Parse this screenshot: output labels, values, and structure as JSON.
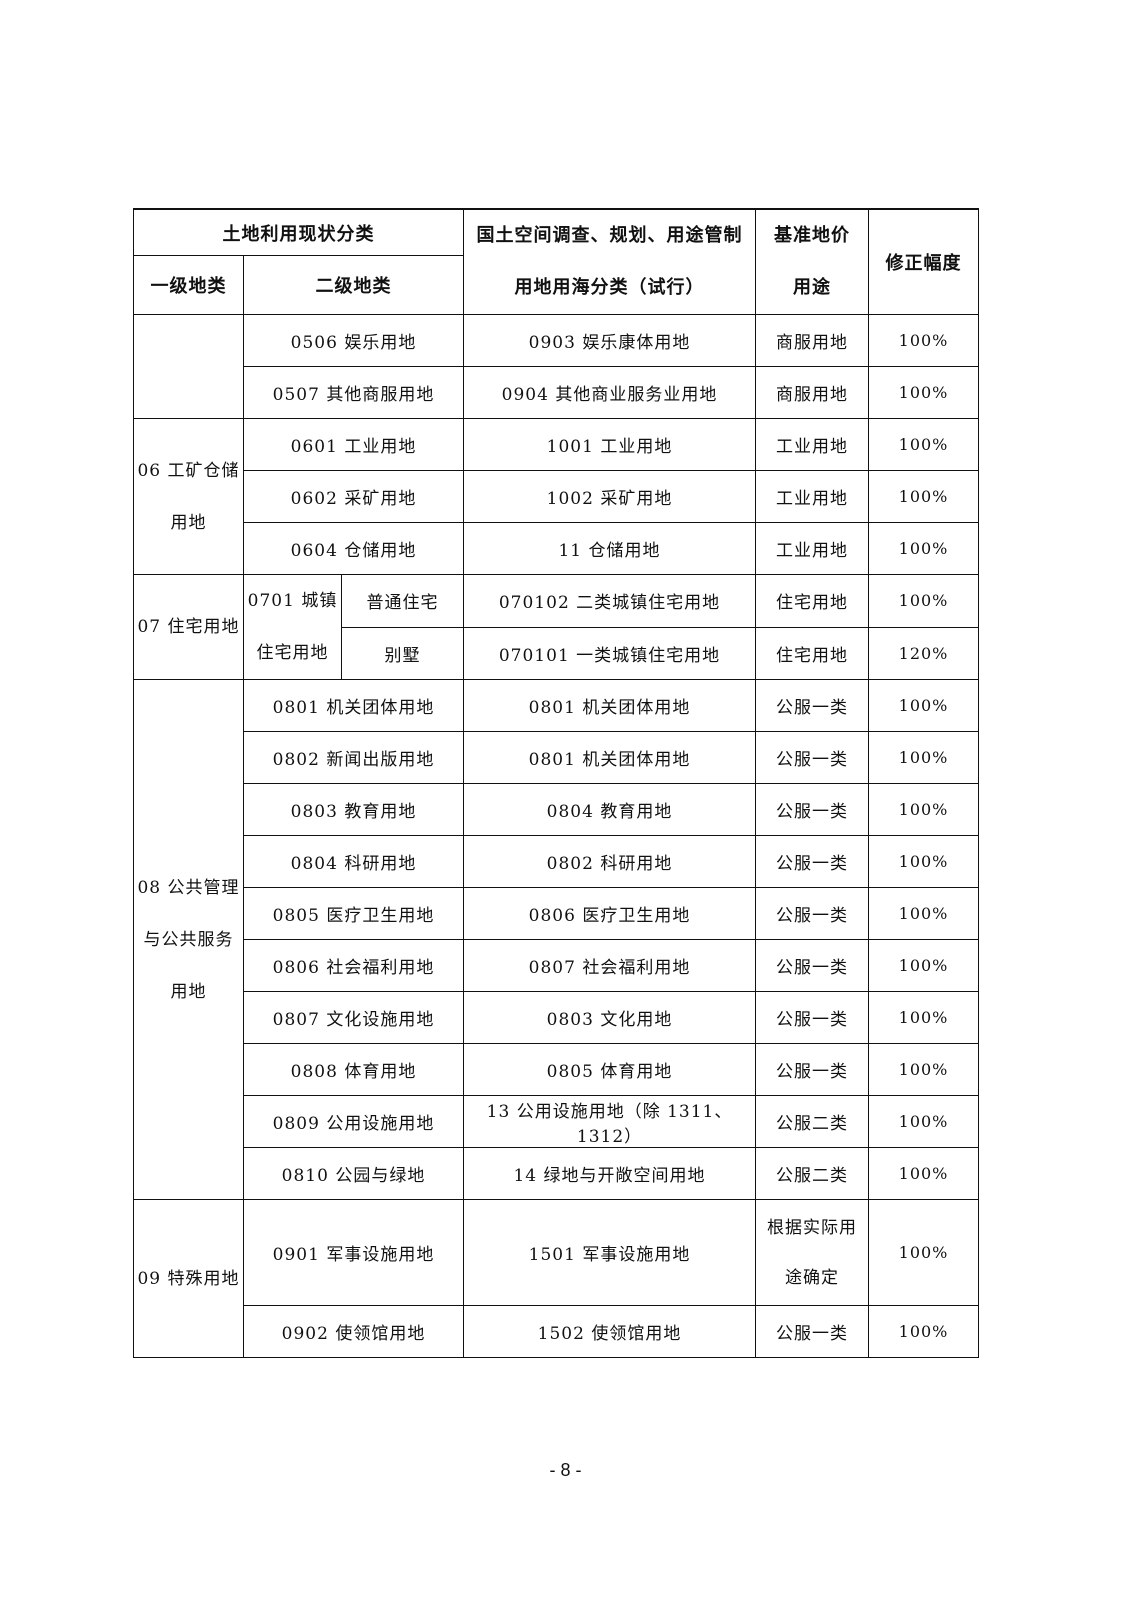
{
  "header": {
    "current_class": "土地利用现状分类",
    "level1": "一级地类",
    "level2": "二级地类",
    "spatial_line1": "国土空间调查、规划、用途管制",
    "spatial_line2": "用地用海分类（试行）",
    "base_use_line1": "基准地价",
    "base_use_line2": "用途",
    "adjust": "修正幅度"
  },
  "groups": [
    {
      "primary": "",
      "rows": [
        {
          "secondary": "0506 娱乐用地",
          "spatial": "0903 娱乐康体用地",
          "use": "商服用地",
          "pct": "100%"
        },
        {
          "secondary": "0507 其他商服用地",
          "spatial": "0904 其他商业服务业用地",
          "use": "商服用地",
          "pct": "100%"
        }
      ]
    },
    {
      "primary": "06 工矿仓储用地",
      "rows": [
        {
          "secondary": "0601 工业用地",
          "spatial": "1001 工业用地",
          "use": "工业用地",
          "pct": "100%"
        },
        {
          "secondary": "0602 采矿用地",
          "spatial": "1002 采矿用地",
          "use": "工业用地",
          "pct": "100%"
        },
        {
          "secondary": "0604 仓储用地",
          "spatial": "11 仓储用地",
          "use": "工业用地",
          "pct": "100%"
        }
      ]
    },
    {
      "primary": "07 住宅用地",
      "secondary_merged": "0701 城镇住宅用地",
      "rows": [
        {
          "tertiary": "普通住宅",
          "spatial": "070102 二类城镇住宅用地",
          "use": "住宅用地",
          "pct": "100%"
        },
        {
          "tertiary": "别墅",
          "spatial": "070101 一类城镇住宅用地",
          "use": "住宅用地",
          "pct": "120%"
        }
      ]
    },
    {
      "primary": "08 公共管理与公共服务用地",
      "rows": [
        {
          "secondary": "0801 机关团体用地",
          "spatial": "0801 机关团体用地",
          "use": "公服一类",
          "pct": "100%"
        },
        {
          "secondary": "0802 新闻出版用地",
          "spatial": "0801 机关团体用地",
          "use": "公服一类",
          "pct": "100%"
        },
        {
          "secondary": "0803 教育用地",
          "spatial": "0804 教育用地",
          "use": "公服一类",
          "pct": "100%"
        },
        {
          "secondary": "0804 科研用地",
          "spatial": "0802 科研用地",
          "use": "公服一类",
          "pct": "100%"
        },
        {
          "secondary": "0805 医疗卫生用地",
          "spatial": "0806 医疗卫生用地",
          "use": "公服一类",
          "pct": "100%"
        },
        {
          "secondary": "0806 社会福利用地",
          "spatial": "0807 社会福利用地",
          "use": "公服一类",
          "pct": "100%"
        },
        {
          "secondary": "0807 文化设施用地",
          "spatial": "0803 文化用地",
          "use": "公服一类",
          "pct": "100%"
        },
        {
          "secondary": "0808 体育用地",
          "spatial": "0805 体育用地",
          "use": "公服一类",
          "pct": "100%"
        },
        {
          "secondary": "0809 公用设施用地",
          "spatial": "13 公用设施用地（除 1311、1312）",
          "use": "公服二类",
          "pct": "100%"
        },
        {
          "secondary": "0810 公园与绿地",
          "spatial": "14 绿地与开敞空间用地",
          "use": "公服二类",
          "pct": "100%"
        }
      ]
    },
    {
      "primary": "09 特殊用地",
      "rows": [
        {
          "secondary": "0901 军事设施用地",
          "spatial": "1501 军事设施用地",
          "use": "根据实际用途确定",
          "pct": "100%",
          "tall": true
        },
        {
          "secondary": "0902 使领馆用地",
          "spatial": "1502 使领馆用地",
          "use": "公服一类",
          "pct": "100%"
        }
      ]
    }
  ],
  "page_number": "- 8 -"
}
